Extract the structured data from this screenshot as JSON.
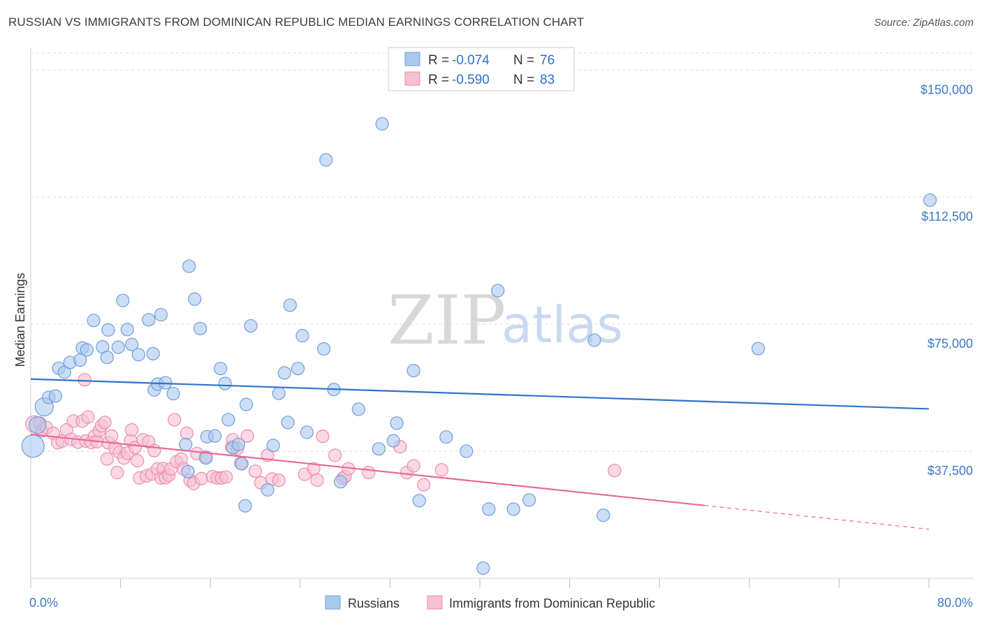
{
  "header": {
    "title": "RUSSIAN VS IMMIGRANTS FROM DOMINICAN REPUBLIC MEDIAN EARNINGS CORRELATION CHART",
    "source": "Source: ZipAtlas.com"
  },
  "watermark": {
    "zip": "ZIP",
    "atlas": "atlas"
  },
  "legend": {
    "items": [
      {
        "r_label": "R =",
        "r_value": "-0.074",
        "n_label": "N =",
        "n_value": "76"
      },
      {
        "r_label": "R =",
        "r_value": "-0.590",
        "n_label": "N =",
        "n_value": "83"
      }
    ]
  },
  "bottom_legend": [
    "Russians",
    "Immigrants from Dominican Republic"
  ],
  "colors": {
    "blue_fill": "#aac8ee",
    "blue_stroke": "#6f9fdb",
    "blue_line": "#2f73c9",
    "pink_fill": "#f6c0d2",
    "pink_stroke": "#eb8db0",
    "pink_line": "#e8689a",
    "grid": "#dddddd"
  },
  "chart_data": {
    "type": "scatter",
    "title": "RUSSIAN VS IMMIGRANTS FROM DOMINICAN REPUBLIC MEDIAN EARNINGS CORRELATION CHART",
    "xlabel": "",
    "ylabel": "Median Earnings",
    "xlim": [
      0,
      80
    ],
    "ylim": [
      0,
      155000
    ],
    "x_tick_labels": [
      "0.0%",
      "80.0%"
    ],
    "y_ticks": [
      37500,
      75000,
      112500,
      150000
    ],
    "y_tick_labels": [
      "$37,500",
      "$75,000",
      "$112,500",
      "$150,000"
    ],
    "grid": true,
    "legend_position": "top-center",
    "series": [
      {
        "name": "Russians",
        "r": -0.074,
        "n": 76,
        "trend": {
          "x": [
            0,
            80
          ],
          "y": [
            58800,
            50000
          ]
        },
        "points": [
          [
            0.2,
            39000,
            16
          ],
          [
            0.6,
            45200,
            12
          ],
          [
            1.2,
            50600,
            13
          ],
          [
            1.6,
            53400,
            9
          ],
          [
            2.2,
            53800,
            9
          ],
          [
            2.5,
            62000,
            9
          ],
          [
            3.0,
            60800,
            9
          ],
          [
            3.5,
            63700,
            9
          ],
          [
            4.4,
            64400,
            9
          ],
          [
            4.6,
            68000,
            9
          ],
          [
            5.0,
            67400,
            9
          ],
          [
            6.4,
            68300,
            9
          ],
          [
            5.6,
            76100,
            9
          ],
          [
            6.9,
            73300,
            9
          ],
          [
            6.8,
            65200,
            9
          ],
          [
            7.8,
            68200,
            9
          ],
          [
            8.6,
            73400,
            9
          ],
          [
            8.2,
            82000,
            9
          ],
          [
            9.0,
            69000,
            9
          ],
          [
            9.6,
            66000,
            9
          ],
          [
            10.5,
            76300,
            9
          ],
          [
            10.9,
            66300,
            9
          ],
          [
            11.0,
            55600,
            9
          ],
          [
            11.3,
            57300,
            9
          ],
          [
            11.6,
            77800,
            9
          ],
          [
            12.0,
            57700,
            9
          ],
          [
            12.7,
            54500,
            9
          ],
          [
            13.8,
            39500,
            9
          ],
          [
            14.0,
            31500,
            9
          ],
          [
            14.1,
            92100,
            9
          ],
          [
            14.6,
            82400,
            9
          ],
          [
            15.1,
            73700,
            9
          ],
          [
            15.6,
            35500,
            9
          ],
          [
            15.7,
            41800,
            9
          ],
          [
            16.4,
            42000,
            9
          ],
          [
            16.9,
            61900,
            9
          ],
          [
            17.3,
            57500,
            9
          ],
          [
            17.6,
            46800,
            9
          ],
          [
            18.0,
            38500,
            9
          ],
          [
            18.5,
            39500,
            9
          ],
          [
            18.8,
            33800,
            9
          ],
          [
            19.2,
            51300,
            9
          ],
          [
            19.6,
            74500,
            9
          ],
          [
            19.1,
            21400,
            9
          ],
          [
            21.1,
            26100,
            9
          ],
          [
            21.6,
            39200,
            9
          ],
          [
            22.1,
            54600,
            9
          ],
          [
            22.6,
            60600,
            9
          ],
          [
            22.9,
            46000,
            9
          ],
          [
            23.1,
            80600,
            9
          ],
          [
            23.8,
            61900,
            9
          ],
          [
            24.2,
            71600,
            9
          ],
          [
            24.6,
            43100,
            9
          ],
          [
            26.1,
            67700,
            9
          ],
          [
            26.3,
            123500,
            9
          ],
          [
            27.0,
            55700,
            9
          ],
          [
            27.6,
            28500,
            9
          ],
          [
            29.2,
            49900,
            9
          ],
          [
            31.0,
            38200,
            9
          ],
          [
            31.3,
            134100,
            9
          ],
          [
            32.3,
            40600,
            9
          ],
          [
            32.6,
            45800,
            9
          ],
          [
            34.1,
            61300,
            9
          ],
          [
            34.6,
            22900,
            9
          ],
          [
            37.0,
            41700,
            9
          ],
          [
            38.8,
            37500,
            9
          ],
          [
            40.3,
            3000,
            9
          ],
          [
            40.8,
            20400,
            9
          ],
          [
            41.6,
            84900,
            9
          ],
          [
            43.0,
            20400,
            9
          ],
          [
            44.4,
            23100,
            9
          ],
          [
            50.2,
            70300,
            9
          ],
          [
            51.0,
            18600,
            9
          ],
          [
            64.8,
            67800,
            9
          ],
          [
            80.1,
            111600,
            9
          ]
        ]
      },
      {
        "name": "Immigrants from Dominican Republic",
        "r": -0.59,
        "n": 83,
        "trend": {
          "x": [
            0,
            60
          ],
          "y": [
            42500,
            21500
          ]
        },
        "trend_dashed": {
          "x": [
            60,
            80
          ],
          "y": [
            21500,
            14500
          ]
        },
        "points": [
          [
            0.3,
            45500,
            12
          ],
          [
            0.8,
            45800,
            9
          ],
          [
            1.0,
            43500,
            9
          ],
          [
            1.4,
            44500,
            9
          ],
          [
            2.0,
            42800,
            9
          ],
          [
            2.4,
            40000,
            9
          ],
          [
            2.8,
            40500,
            9
          ],
          [
            3.2,
            43800,
            9
          ],
          [
            3.6,
            41000,
            9
          ],
          [
            3.8,
            46400,
            9
          ],
          [
            4.2,
            40200,
            9
          ],
          [
            4.6,
            46400,
            9
          ],
          [
            4.9,
            40500,
            9
          ],
          [
            4.8,
            58600,
            9
          ],
          [
            5.1,
            47600,
            9
          ],
          [
            5.4,
            40100,
            9
          ],
          [
            5.7,
            42000,
            9
          ],
          [
            5.9,
            40300,
            9
          ],
          [
            6.1,
            43500,
            9
          ],
          [
            6.3,
            45000,
            9
          ],
          [
            6.6,
            46000,
            9
          ],
          [
            6.9,
            40000,
            9
          ],
          [
            6.8,
            35200,
            9
          ],
          [
            7.2,
            42000,
            9
          ],
          [
            7.5,
            38500,
            9
          ],
          [
            7.9,
            37200,
            9
          ],
          [
            7.7,
            31200,
            9
          ],
          [
            8.3,
            35500,
            9
          ],
          [
            8.6,
            36900,
            9
          ],
          [
            8.9,
            40700,
            9
          ],
          [
            9.0,
            43800,
            9
          ],
          [
            9.3,
            38600,
            9
          ],
          [
            9.5,
            34700,
            9
          ],
          [
            9.7,
            29600,
            9
          ],
          [
            10.0,
            40900,
            9
          ],
          [
            10.3,
            30200,
            9
          ],
          [
            10.5,
            40300,
            9
          ],
          [
            10.8,
            30800,
            9
          ],
          [
            11.0,
            37700,
            9
          ],
          [
            11.3,
            32300,
            9
          ],
          [
            11.6,
            29600,
            9
          ],
          [
            11.8,
            32400,
            9
          ],
          [
            12.0,
            29700,
            9
          ],
          [
            12.3,
            30400,
            9
          ],
          [
            12.5,
            32300,
            9
          ],
          [
            12.8,
            46800,
            9
          ],
          [
            13.0,
            34400,
            9
          ],
          [
            13.4,
            35200,
            9
          ],
          [
            13.6,
            32300,
            9
          ],
          [
            13.9,
            42800,
            9
          ],
          [
            14.2,
            28900,
            9
          ],
          [
            14.5,
            28000,
            9
          ],
          [
            14.8,
            36800,
            9
          ],
          [
            15.2,
            29400,
            9
          ],
          [
            15.6,
            35800,
            9
          ],
          [
            16.2,
            30000,
            9
          ],
          [
            16.6,
            29600,
            9
          ],
          [
            17.0,
            29600,
            9
          ],
          [
            17.4,
            29900,
            9
          ],
          [
            17.9,
            38800,
            9
          ],
          [
            18.0,
            40900,
            9
          ],
          [
            18.4,
            38300,
            9
          ],
          [
            18.7,
            34000,
            9
          ],
          [
            19.3,
            42000,
            9
          ],
          [
            20.0,
            31600,
            9
          ],
          [
            20.5,
            28200,
            9
          ],
          [
            21.1,
            36300,
            9
          ],
          [
            21.5,
            29300,
            9
          ],
          [
            22.1,
            28900,
            9
          ],
          [
            24.4,
            30700,
            9
          ],
          [
            25.2,
            32300,
            9
          ],
          [
            25.5,
            29000,
            9
          ],
          [
            26.0,
            41900,
            9
          ],
          [
            27.1,
            36300,
            9
          ],
          [
            27.8,
            29500,
            9
          ],
          [
            28.0,
            30000,
            9
          ],
          [
            28.3,
            32300,
            9
          ],
          [
            30.1,
            31200,
            9
          ],
          [
            32.9,
            38800,
            9
          ],
          [
            33.5,
            31200,
            9
          ],
          [
            34.1,
            33200,
            9
          ],
          [
            35.0,
            27600,
            9
          ],
          [
            36.6,
            32000,
            9
          ],
          [
            52.0,
            31800,
            9
          ]
        ]
      }
    ]
  }
}
